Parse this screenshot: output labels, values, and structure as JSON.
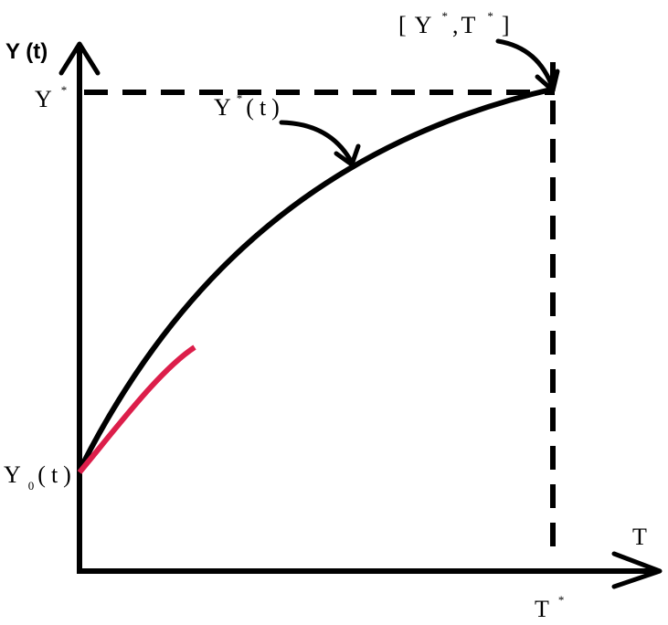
{
  "axes": {
    "y_label": "Y (t)",
    "x_label": "T",
    "x_mark": {
      "base": "T",
      "sup": "*"
    }
  },
  "labels": {
    "y_star": {
      "base": "Y",
      "sup": "*"
    },
    "optimal_curve": {
      "base": "Y",
      "sup": "*",
      "tail": "(t)"
    },
    "optimal_point": {
      "open": "[",
      "y": "Y",
      "y_sup": "*",
      "sep": ",",
      "t": "T",
      "t_sup": "*",
      "close": "]"
    },
    "start": {
      "base": "Y",
      "sub": "0",
      "tail": "(t)"
    }
  }
}
